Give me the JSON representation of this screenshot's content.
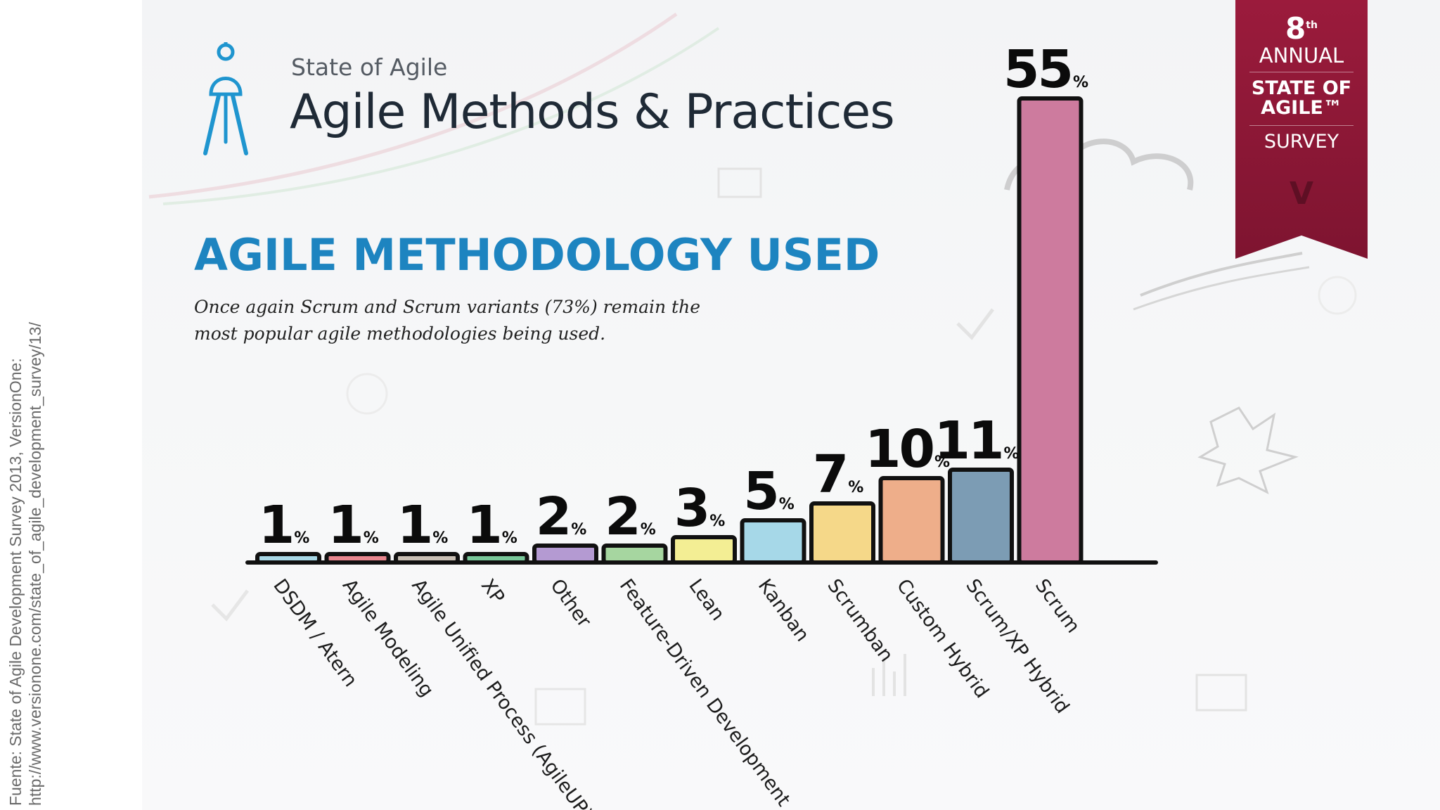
{
  "source_note": {
    "line1": "Fuente: State of Agile Development Survey 2013, VersionOne:",
    "line2": "http://www.versionone.com/state_of_agile_development_survey/13/"
  },
  "header": {
    "kicker": "State of Agile",
    "title": "Agile Methods & Practices"
  },
  "section": {
    "heading": "AGILE METHODOLOGY USED",
    "note": "Once again Scrum and Scrum variants (73%) remain the most popular agile methodologies being used."
  },
  "badge": {
    "ordinal": "8",
    "ordinal_suffix": "th",
    "line1": "ANNUAL",
    "line2a": "STATE OF",
    "line2b": "AGILE™",
    "line3": "SURVEY",
    "logo": "V"
  },
  "chart_data": {
    "type": "bar",
    "unit": "%",
    "categories": [
      "DSDM / Atern",
      "Agile Modeling",
      "Agile Unified Process (AgileUP)",
      "XP",
      "Other",
      "Feature-Driven Development",
      "Lean",
      "Kanban",
      "Scrumban",
      "Custom Hybrid",
      "Scrum/XP Hybrid",
      "Scrum"
    ],
    "values": [
      1,
      1,
      1,
      1,
      2,
      2,
      3,
      5,
      7,
      10,
      11,
      55
    ],
    "colors": [
      "#a8d8e6",
      "#e8868e",
      "#c9bfb4",
      "#79c89a",
      "#b49ad2",
      "#a6d6a0",
      "#f3ee94",
      "#a6d8e8",
      "#f5d889",
      "#eeae8a",
      "#7c9cb4",
      "#cd7b9e"
    ],
    "ylim": [
      0,
      55
    ],
    "grid": false,
    "legend": "none"
  }
}
